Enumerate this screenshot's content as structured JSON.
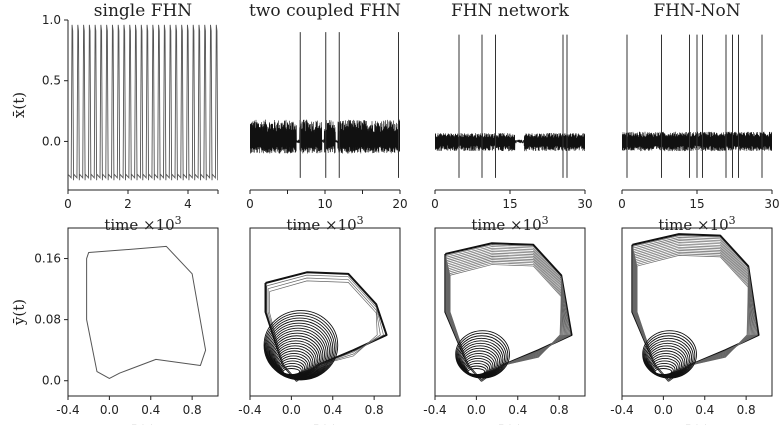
{
  "chart_data": [
    {
      "type": "line",
      "title": "single FHN",
      "xlabel": "time ×10",
      "xlabel_sup": "3",
      "ylabel": "x̄(t)",
      "xlim": [
        0,
        5
      ],
      "ylim": [
        -0.4,
        1.0
      ],
      "xticks": [
        0,
        2,
        4
      ],
      "xticks_extra": [
        5
      ],
      "yticks": [
        0.0,
        0.5,
        1.0
      ],
      "ytick_labels": [
        "0.0",
        "0.5",
        "1.0"
      ],
      "series": [
        {
          "mode": "regular-spikes",
          "spike_count": 26,
          "peak": 0.96,
          "trough": -0.32
        }
      ]
    },
    {
      "type": "line",
      "title": "two coupled FHN",
      "xlabel": "time ×10",
      "xlabel_sup": "3",
      "xlim": [
        0,
        20
      ],
      "ylim": [
        -0.4,
        1.0
      ],
      "xticks": [
        0,
        10,
        20
      ],
      "xticks_extra": [
        5,
        15
      ],
      "series": [
        {
          "mode": "chaotic-bursts",
          "band_low": -0.1,
          "band_high": 0.18,
          "spikes_at": [
            6.7,
            10.1,
            11.9,
            19.8
          ],
          "spike_peak": 0.9,
          "gaps": [
            [
              6.2,
              6.6
            ],
            [
              9.6,
              9.9
            ],
            [
              11.4,
              11.7
            ]
          ]
        }
      ]
    },
    {
      "type": "line",
      "title": "FHN network",
      "xlabel": "time ×10",
      "xlabel_sup": "3",
      "xlim": [
        0,
        30
      ],
      "ylim": [
        -0.4,
        1.0
      ],
      "xticks": [
        0,
        15,
        30
      ],
      "series": [
        {
          "mode": "chaotic-bursts",
          "band_low": -0.08,
          "band_high": 0.07,
          "spikes_at": [
            4.8,
            9.4,
            12.1,
            25.6,
            26.4
          ],
          "spike_peak": 0.88,
          "gaps": [
            [
              16.0,
              17.8
            ]
          ]
        }
      ]
    },
    {
      "type": "line",
      "title": "FHN-NoN",
      "xlabel": "time ×10",
      "xlabel_sup": "3",
      "xlim": [
        0,
        30
      ],
      "ylim": [
        -0.4,
        1.0
      ],
      "xticks": [
        0,
        15,
        30
      ],
      "series": [
        {
          "mode": "chaotic-bursts",
          "band_low": -0.08,
          "band_high": 0.08,
          "spikes_at": [
            1.0,
            7.9,
            13.5,
            15.0,
            16.1,
            20.8,
            22.1,
            23.3,
            28.0
          ],
          "spike_peak": 0.88,
          "gaps": []
        }
      ]
    },
    {
      "type": "line",
      "xlabel": "x̄(t)",
      "ylabel": "ȳ(t)",
      "xlim": [
        -0.4,
        1.05
      ],
      "ylim": [
        -0.02,
        0.2
      ],
      "xticks": [
        -0.4,
        0.0,
        0.4,
        0.8
      ],
      "xtick_labels": [
        "-0.4",
        "0.0",
        "0.4",
        "0.8"
      ],
      "yticks": [
        0.0,
        0.08,
        0.16
      ],
      "ytick_labels": [
        "0.0",
        "0.08",
        "0.16"
      ],
      "series": [
        {
          "mode": "limit-cycle"
        }
      ]
    },
    {
      "type": "line",
      "xlabel": "x̄(t)",
      "xlim": [
        -0.4,
        1.05
      ],
      "ylim": [
        -0.02,
        0.2
      ],
      "xticks": [
        -0.4,
        0.0,
        0.4,
        0.8
      ],
      "xtick_labels": [
        "-0.4",
        "0.0",
        "0.4",
        "0.8"
      ],
      "series": [
        {
          "mode": "chaotic-attractor",
          "variant": "two"
        }
      ]
    },
    {
      "type": "line",
      "xlabel": "x̄(t)",
      "xlim": [
        -0.4,
        1.05
      ],
      "ylim": [
        -0.02,
        0.2
      ],
      "xticks": [
        -0.4,
        0.0,
        0.4,
        0.8
      ],
      "xtick_labels": [
        "-0.4",
        "0.0",
        "0.4",
        "0.8"
      ],
      "series": [
        {
          "mode": "chaotic-attractor",
          "variant": "network"
        }
      ]
    },
    {
      "type": "line",
      "xlabel": "x̄(t)",
      "xlim": [
        -0.4,
        1.05
      ],
      "ylim": [
        -0.02,
        0.2
      ],
      "xticks": [
        -0.4,
        0.0,
        0.4,
        0.8
      ],
      "xtick_labels": [
        "-0.4",
        "0.0",
        "0.4",
        "0.8"
      ],
      "series": [
        {
          "mode": "chaotic-attractor",
          "variant": "non"
        }
      ]
    }
  ]
}
